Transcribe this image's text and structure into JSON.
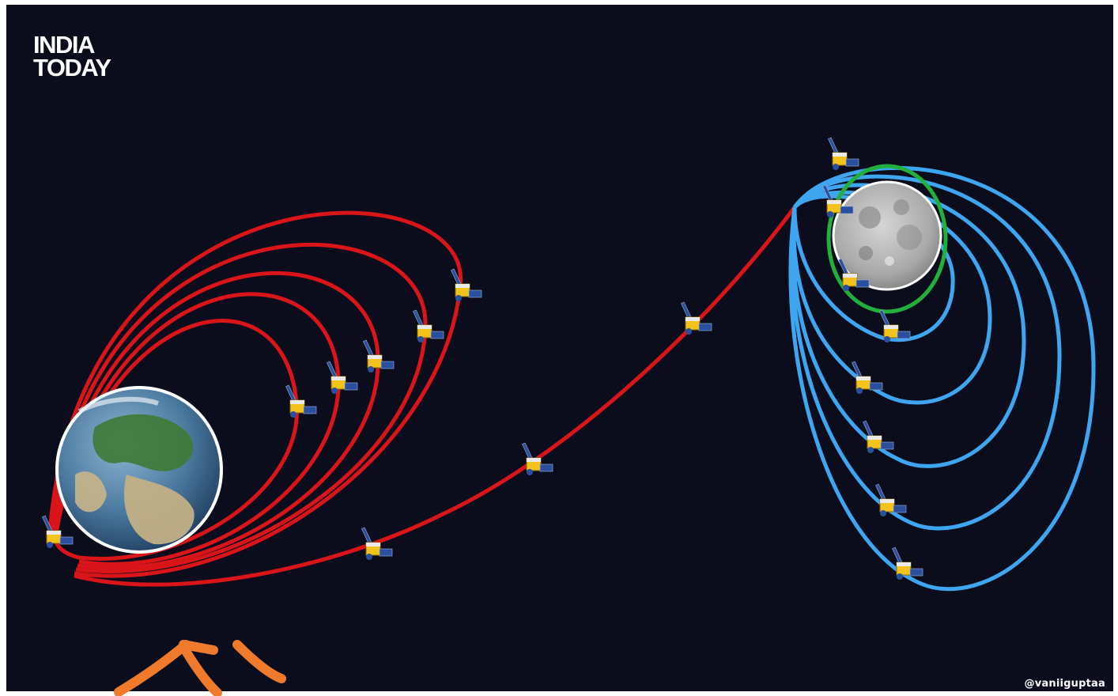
{
  "branding": {
    "line1": "INDIA",
    "line2": "TODAY"
  },
  "credit": "@vaniiguptaa",
  "colors": {
    "background": "#0b0d1c",
    "earth_orbits": "#d9151a",
    "transfer": "#d9151a",
    "moon_orbits": "#3ea6f0",
    "final_orbit": "#22b03c",
    "annotation": "#f07a2c",
    "satellite_body": "#f3c21b",
    "solar_panel": "#2a4f9e"
  },
  "icons": [
    "earth-icon",
    "moon-icon",
    "satellite-icon"
  ]
}
